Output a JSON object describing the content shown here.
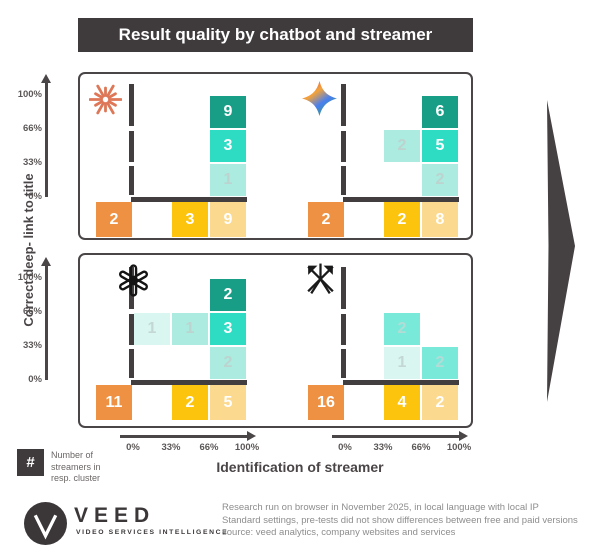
{
  "title": "Result quality by chatbot and streamer",
  "axes": {
    "y_title": "Correct deep- link to title",
    "x_title": "Identification of streamer",
    "y_ticks": [
      "100%",
      "66%",
      "33%",
      "0%"
    ],
    "x_ticks": [
      "0%",
      "33%",
      "66%",
      "100%"
    ]
  },
  "legend": {
    "symbol": "#",
    "label": "Number of\nstreamers in\nresp. cluster"
  },
  "footer": {
    "brand": "VEED",
    "brand_sub": "VIDEO SERVICES INTELLIGENCE",
    "notes": [
      "Research run on browser in November 2025, in local language with local IP",
      "Standard settings, pre-tests did not show differences between free and paid versions",
      "source: veed analytics, company websites and services"
    ]
  },
  "colors": {
    "dark": "#3f3b3c",
    "orange": "#ef9143",
    "amber": "#fcc40d",
    "amber_light": "#fbd98e",
    "teal_dark": "#189e86",
    "teal_med": "#2edcc4",
    "teal_soft": "#79e9da",
    "teal_light": "#abebe0",
    "teal_xlight": "#d9f6f1",
    "claude_orange": "#dd7757"
  },
  "chart_data": {
    "type": "heatmap",
    "title": "Result quality by chatbot and streamer",
    "xlabel": "Identification of streamer",
    "ylabel": "Correct deep- link to title",
    "x_bands": [
      "below 0%",
      "0-33%",
      "33-66%",
      "66-100%"
    ],
    "y_bands": [
      "66-100%",
      "33-66%",
      "0-33%",
      "below 0%"
    ],
    "value_meaning": "number of streamers in respective cluster",
    "panels": [
      {
        "id": "claude",
        "chatbot": "Claude",
        "cells": [
          {
            "col": 3,
            "row": 0,
            "value": 9,
            "shade": "teal-dark"
          },
          {
            "col": 3,
            "row": 1,
            "value": 3,
            "shade": "teal-med"
          },
          {
            "col": 3,
            "row": 2,
            "value": 1,
            "shade": "teal-light"
          },
          {
            "col": 0,
            "row": 3,
            "value": 2,
            "shade": "orange"
          },
          {
            "col": 2,
            "row": 3,
            "value": 3,
            "shade": "amber"
          },
          {
            "col": 3,
            "row": 3,
            "value": 9,
            "shade": "amber-light"
          }
        ]
      },
      {
        "id": "gemini",
        "chatbot": "Gemini",
        "cells": [
          {
            "col": 3,
            "row": 0,
            "value": 6,
            "shade": "teal-dark"
          },
          {
            "col": 2,
            "row": 1,
            "value": 2,
            "shade": "teal-light"
          },
          {
            "col": 3,
            "row": 1,
            "value": 5,
            "shade": "teal-med"
          },
          {
            "col": 3,
            "row": 2,
            "value": 2,
            "shade": "teal-light"
          },
          {
            "col": 0,
            "row": 3,
            "value": 2,
            "shade": "orange"
          },
          {
            "col": 2,
            "row": 3,
            "value": 2,
            "shade": "amber"
          },
          {
            "col": 3,
            "row": 3,
            "value": 8,
            "shade": "amber-light"
          }
        ]
      },
      {
        "id": "chatgpt",
        "chatbot": "ChatGPT",
        "cells": [
          {
            "col": 3,
            "row": 0,
            "value": 2,
            "shade": "teal-dark"
          },
          {
            "col": 1,
            "row": 1,
            "value": 1,
            "shade": "teal-xlight"
          },
          {
            "col": 2,
            "row": 1,
            "value": 1,
            "shade": "teal-light"
          },
          {
            "col": 3,
            "row": 1,
            "value": 3,
            "shade": "teal-med"
          },
          {
            "col": 3,
            "row": 2,
            "value": 2,
            "shade": "teal-light"
          },
          {
            "col": 0,
            "row": 3,
            "value": 11,
            "shade": "orange"
          },
          {
            "col": 2,
            "row": 3,
            "value": 2,
            "shade": "amber"
          },
          {
            "col": 3,
            "row": 3,
            "value": 5,
            "shade": "amber-light"
          }
        ]
      },
      {
        "id": "grok",
        "chatbot": "Grok",
        "cells": [
          {
            "col": 2,
            "row": 1,
            "value": 2,
            "shade": "teal-soft"
          },
          {
            "col": 2,
            "row": 2,
            "value": 1,
            "shade": "teal-xlight"
          },
          {
            "col": 3,
            "row": 2,
            "value": 2,
            "shade": "teal-soft"
          },
          {
            "col": 0,
            "row": 3,
            "value": 16,
            "shade": "orange"
          },
          {
            "col": 2,
            "row": 3,
            "value": 4,
            "shade": "amber"
          },
          {
            "col": 3,
            "row": 3,
            "value": 2,
            "shade": "amber-light"
          }
        ]
      }
    ]
  }
}
